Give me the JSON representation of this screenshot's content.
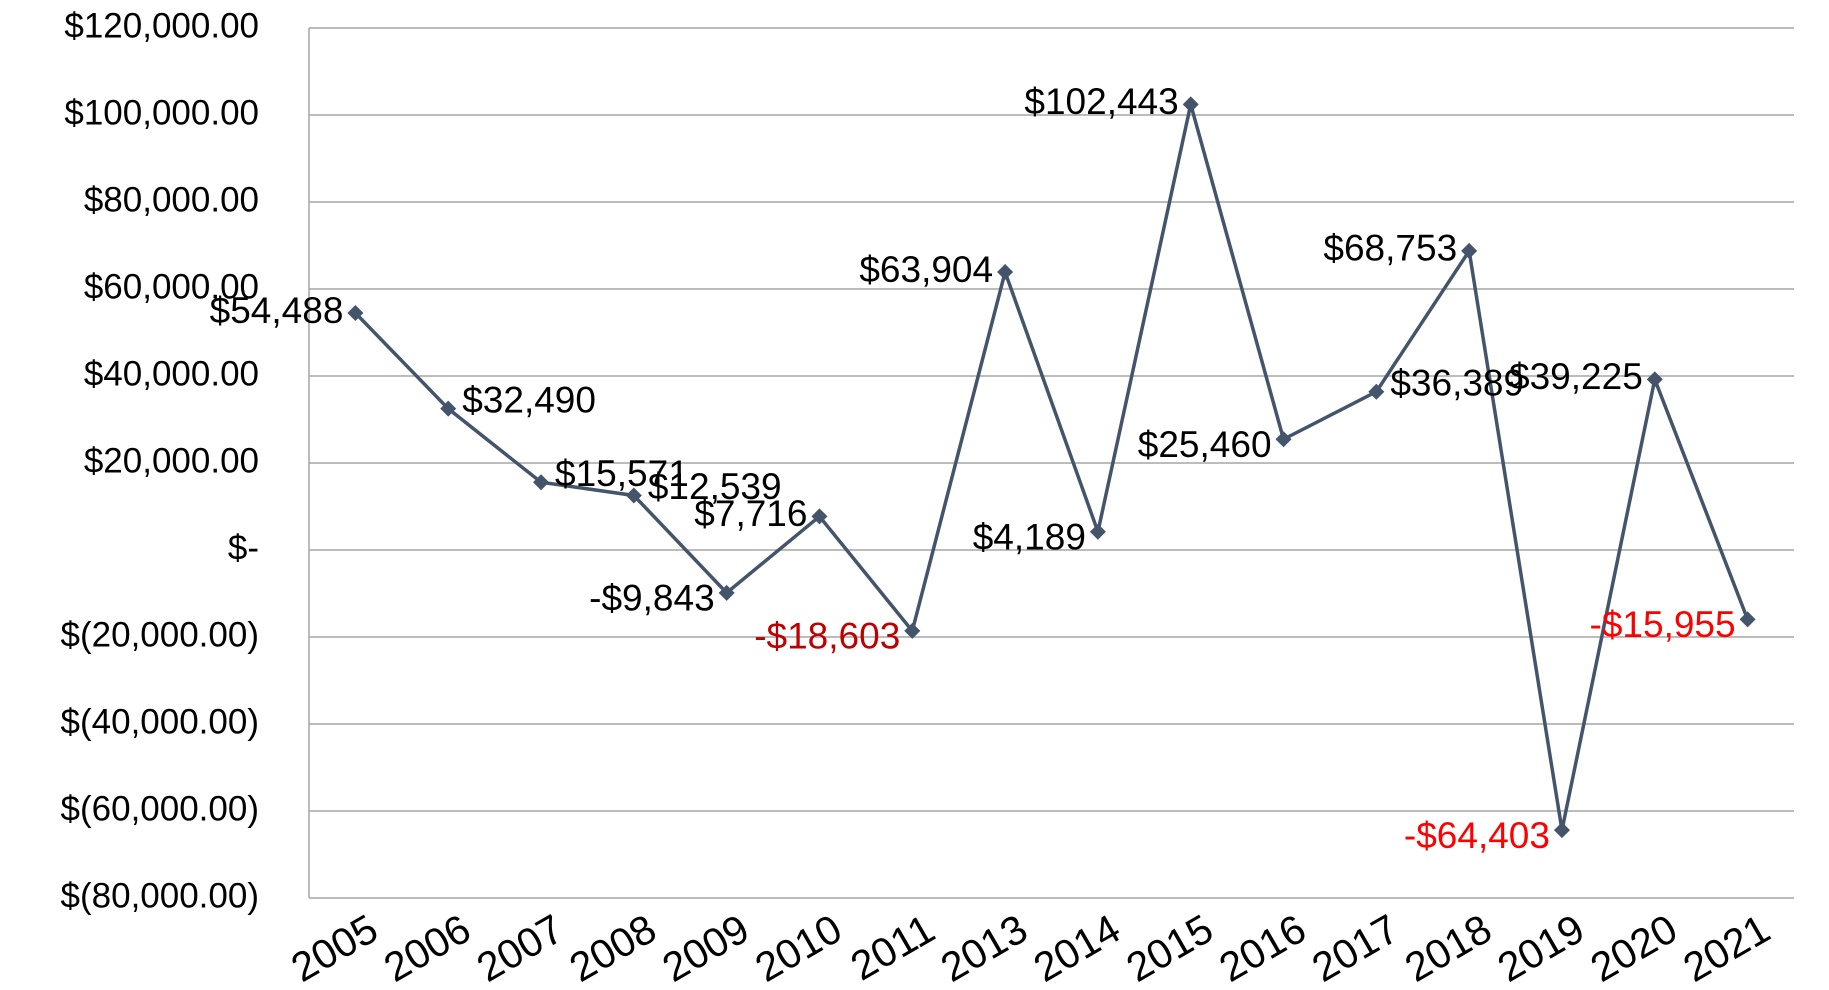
{
  "chart_data": {
    "type": "line",
    "categories": [
      "2005",
      "2006",
      "2007",
      "2008",
      "2009",
      "2010",
      "2011",
      "2013",
      "2014",
      "2015",
      "2016",
      "2017",
      "2018",
      "2019",
      "2020",
      "2021"
    ],
    "series": [
      {
        "color": "#44546a",
        "values": [
          54488,
          32490,
          15571,
          12539,
          -9843,
          7716,
          -18603,
          63904,
          4189,
          102443,
          25460,
          36389,
          68753,
          -64403,
          39225,
          -15955
        ],
        "value_labels": [
          "$54,488",
          "$32,490",
          "$15,571",
          "$12,539",
          "-$9,843",
          "$7,716",
          "-$18,603",
          "$63,904",
          "$4,189",
          "$102,443",
          "$25,460",
          "$36,389",
          "$68,753",
          "-$64,403",
          "$39,225",
          "-$15,955"
        ],
        "label_colors": [
          "#000000",
          "#000000",
          "#000000",
          "#000000",
          "#000000",
          "#000000",
          "#c00000",
          "#000000",
          "#000000",
          "#000000",
          "#000000",
          "#000000",
          "#000000",
          "#ff0000",
          "#000000",
          "#ff0000"
        ]
      }
    ],
    "ylim": [
      -80000,
      120000
    ],
    "yticks": [
      {
        "value": -80000,
        "label": "$(80,000.00)"
      },
      {
        "value": -60000,
        "label": "$(60,000.00)"
      },
      {
        "value": -40000,
        "label": "$(40,000.00)"
      },
      {
        "value": -20000,
        "label": "$(20,000.00)"
      },
      {
        "value": 0,
        "label": "$-"
      },
      {
        "value": 20000,
        "label": "$20,000.00"
      },
      {
        "value": 40000,
        "label": "$40,000.00"
      },
      {
        "value": 60000,
        "label": "$60,000.00"
      },
      {
        "value": 80000,
        "label": "$80,000.00"
      },
      {
        "value": 100000,
        "label": "$100,000.00"
      },
      {
        "value": 120000,
        "label": "$120,000.00"
      }
    ],
    "grid": true
  }
}
